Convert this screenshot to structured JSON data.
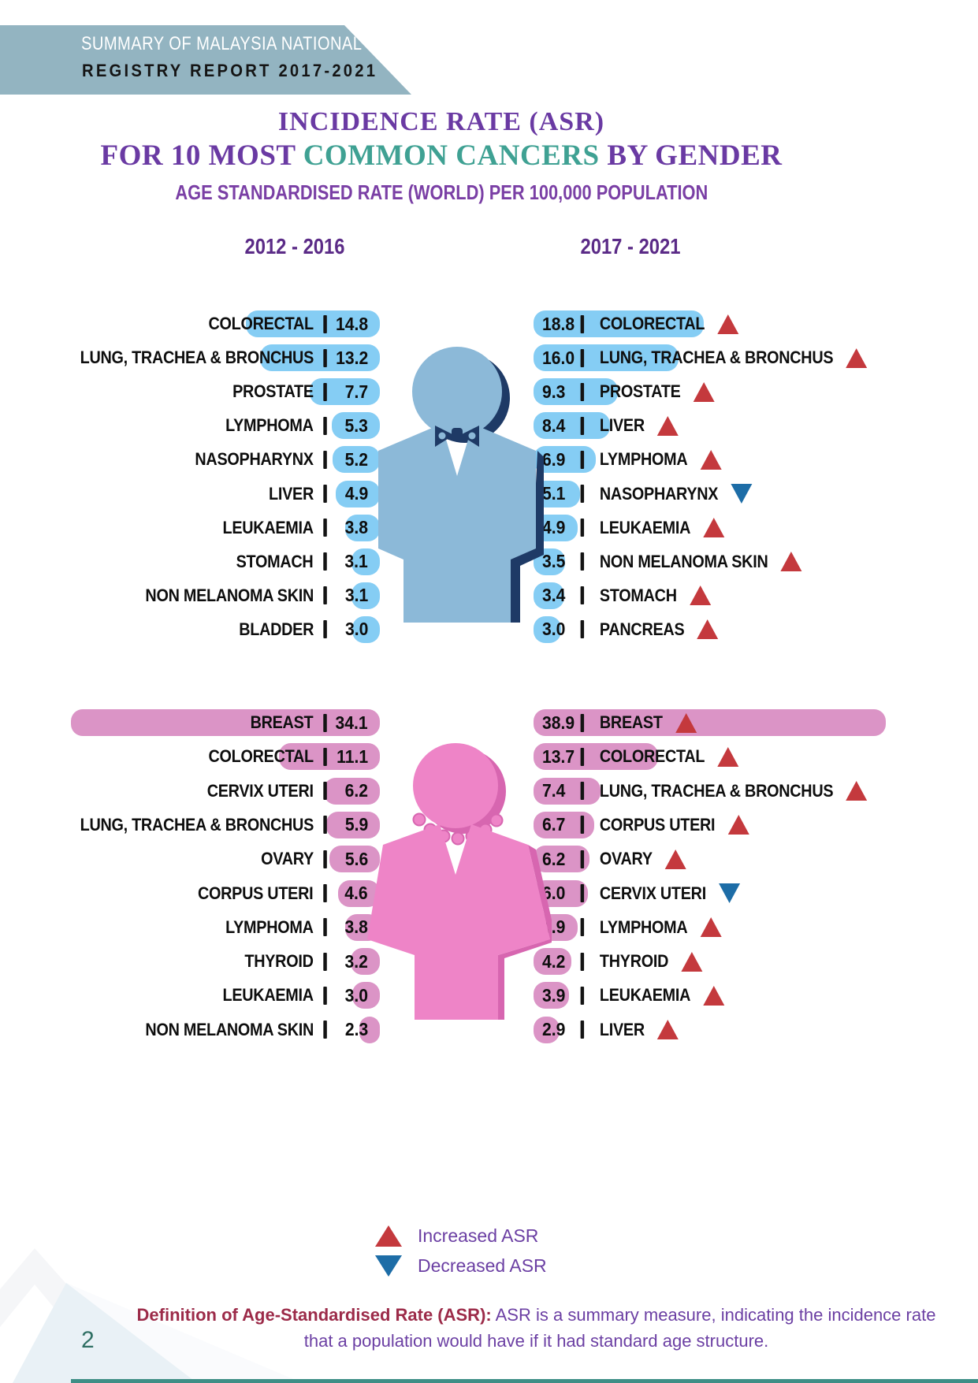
{
  "banner": {
    "line1": "SUMMARY OF MALAYSIA NATIONAL CANCER",
    "line2": "REGISTRY REPORT 2017-2021"
  },
  "title": {
    "line1": "INCIDENCE RATE (ASR)",
    "line2_prefix": "FOR 10 MOST ",
    "line2_highlight": "COMMON CANCERS",
    "line2_suffix": " BY GENDER",
    "subtitle": "AGE STANDARDISED RATE (WORLD) PER 100,000 POPULATION"
  },
  "periods": {
    "left": "2012 - 2016",
    "right": "2017 - 2021"
  },
  "legend": {
    "increased": "Increased ASR",
    "decreased": "Decreased ASR"
  },
  "footer": {
    "definition_label": "Definition of Age-Standardised Rate (ASR):",
    "definition_rest": " ASR is a summary measure, indicating the incidence rate",
    "line2": "that a population would have if it had standard age structure.",
    "page_number": "2"
  },
  "colors": {
    "male_bar": "#85cdf4",
    "female_bar": "#db94c6",
    "male_figure": "#8cb9d8",
    "male_figure_shadow": "#1e3a66",
    "female_figure": "#ee84c7",
    "female_figure_shadow": "#d766b0",
    "increase_triangle": "#c4393d",
    "decrease_triangle": "#1d6da7",
    "banner_bg": "#93b4c1",
    "title_purple": "#6a3aa3",
    "title_teal": "#3fa193",
    "period_header": "#5b2b87",
    "footer_maroon": "#9c2b49",
    "footer_purple": "#6b3fa3",
    "page_number_teal": "#2f6f63"
  },
  "chart_data": {
    "type": "bar",
    "title": "INCIDENCE RATE (ASR) FOR 10 MOST COMMON CANCERS BY GENDER",
    "subtitle": "AGE STANDARDISED RATE (WORLD) PER 100,000 POPULATION",
    "legend": [
      "Increased ASR",
      "Decreased ASR"
    ],
    "groups": [
      {
        "gender": "male",
        "period": "2012 - 2016",
        "side": "left",
        "items": [
          {
            "label": "COLORECTAL",
            "value": 14.8,
            "display": "14.8"
          },
          {
            "label": "LUNG, TRACHEA & BRONCHUS",
            "value": 13.2,
            "display": "13.2"
          },
          {
            "label": "PROSTATE",
            "value": 7.7,
            "display": "7.7"
          },
          {
            "label": "LYMPHOMA",
            "value": 5.3,
            "display": "5.3"
          },
          {
            "label": "NASOPHARYNX",
            "value": 5.2,
            "display": "5.2"
          },
          {
            "label": "LIVER",
            "value": 4.9,
            "display": "4.9"
          },
          {
            "label": "LEUKAEMIA",
            "value": 3.8,
            "display": "3.8"
          },
          {
            "label": "STOMACH",
            "value": 3.1,
            "display": "3.1"
          },
          {
            "label": "NON MELANOMA SKIN",
            "value": 3.1,
            "display": "3.1"
          },
          {
            "label": "BLADDER",
            "value": 3.0,
            "display": "3.0"
          }
        ]
      },
      {
        "gender": "male",
        "period": "2017 - 2021",
        "side": "right",
        "items": [
          {
            "label": "COLORECTAL",
            "value": 18.8,
            "display": "18.8",
            "trend": "up"
          },
          {
            "label": "LUNG, TRACHEA & BRONCHUS",
            "value": 16.0,
            "display": "16.0",
            "trend": "up"
          },
          {
            "label": "PROSTATE",
            "value": 9.3,
            "display": "9.3",
            "trend": "up"
          },
          {
            "label": "LIVER",
            "value": 8.4,
            "display": "8.4",
            "trend": "up"
          },
          {
            "label": "LYMPHOMA",
            "value": 6.9,
            "display": "6.9",
            "trend": "up"
          },
          {
            "label": "NASOPHARYNX",
            "value": 5.1,
            "display": "5.1",
            "trend": "down"
          },
          {
            "label": "LEUKAEMIA",
            "value": 4.9,
            "display": "4.9",
            "trend": "up"
          },
          {
            "label": "NON MELANOMA SKIN",
            "value": 3.5,
            "display": "3.5",
            "trend": "up"
          },
          {
            "label": "STOMACH",
            "value": 3.4,
            "display": "3.4",
            "trend": "up"
          },
          {
            "label": "PANCREAS",
            "value": 3.0,
            "display": "3.0",
            "trend": "up"
          }
        ]
      },
      {
        "gender": "female",
        "period": "2012 - 2016",
        "side": "left",
        "items": [
          {
            "label": "BREAST",
            "value": 34.1,
            "display": "34.1"
          },
          {
            "label": "COLORECTAL",
            "value": 11.1,
            "display": "11.1"
          },
          {
            "label": "CERVIX UTERI",
            "value": 6.2,
            "display": "6.2"
          },
          {
            "label": "LUNG, TRACHEA & BRONCHUS",
            "value": 5.9,
            "display": "5.9"
          },
          {
            "label": "OVARY",
            "value": 5.6,
            "display": "5.6"
          },
          {
            "label": "CORPUS UTERI",
            "value": 4.6,
            "display": "4.6"
          },
          {
            "label": "LYMPHOMA",
            "value": 3.8,
            "display": "3.8"
          },
          {
            "label": "THYROID",
            "value": 3.2,
            "display": "3.2"
          },
          {
            "label": "LEUKAEMIA",
            "value": 3.0,
            "display": "3.0"
          },
          {
            "label": "NON MELANOMA SKIN",
            "value": 2.3,
            "display": "2.3"
          }
        ]
      },
      {
        "gender": "female",
        "period": "2017 - 2021",
        "side": "right",
        "items": [
          {
            "label": "BREAST",
            "value": 38.9,
            "display": "38.9",
            "trend": "up"
          },
          {
            "label": "COLORECTAL",
            "value": 13.7,
            "display": "13.7",
            "trend": "up"
          },
          {
            "label": "LUNG, TRACHEA & BRONCHUS",
            "value": 7.4,
            "display": "7.4",
            "trend": "up"
          },
          {
            "label": "CORPUS UTERI",
            "value": 6.7,
            "display": "6.7",
            "trend": "up"
          },
          {
            "label": "OVARY",
            "value": 6.2,
            "display": "6.2",
            "trend": "up"
          },
          {
            "label": "CERVIX UTERI",
            "value": 6.0,
            "display": "6.0",
            "trend": "down"
          },
          {
            "label": "LYMPHOMA",
            "value": 4.9,
            "display": "4.9",
            "trend": "up"
          },
          {
            "label": "THYROID",
            "value": 4.2,
            "display": "4.2",
            "trend": "up"
          },
          {
            "label": "LEUKAEMIA",
            "value": 3.9,
            "display": "3.9",
            "trend": "up"
          },
          {
            "label": "LIVER",
            "value": 2.9,
            "display": "2.9",
            "trend": "up"
          }
        ]
      }
    ]
  }
}
